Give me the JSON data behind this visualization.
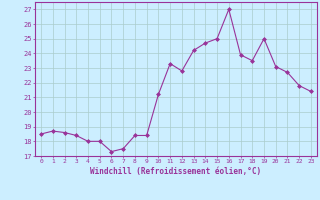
{
  "x": [
    0,
    1,
    2,
    3,
    4,
    5,
    6,
    7,
    8,
    9,
    10,
    11,
    12,
    13,
    14,
    15,
    16,
    17,
    18,
    19,
    20,
    21,
    22,
    23
  ],
  "y": [
    18.5,
    18.7,
    18.6,
    18.4,
    18.0,
    18.0,
    17.3,
    17.5,
    18.4,
    18.4,
    21.2,
    23.3,
    22.8,
    24.2,
    24.7,
    25.0,
    27.0,
    23.9,
    23.5,
    25.0,
    23.1,
    22.7,
    21.8,
    21.4
  ],
  "line_color": "#993399",
  "marker": "D",
  "marker_size": 2.0,
  "bg_color": "#cceeff",
  "grid_color": "#aacccc",
  "xlabel": "Windchill (Refroidissement éolien,°C)",
  "xlabel_color": "#993399",
  "tick_color": "#993399",
  "label_color": "#993399",
  "ylim": [
    17,
    27.5
  ],
  "yticks": [
    17,
    18,
    19,
    20,
    21,
    22,
    23,
    24,
    25,
    26,
    27
  ],
  "xticks": [
    0,
    1,
    2,
    3,
    4,
    5,
    6,
    7,
    8,
    9,
    10,
    11,
    12,
    13,
    14,
    15,
    16,
    17,
    18,
    19,
    20,
    21,
    22,
    23
  ],
  "spine_color": "#993399",
  "xlim": [
    -0.5,
    23.5
  ]
}
